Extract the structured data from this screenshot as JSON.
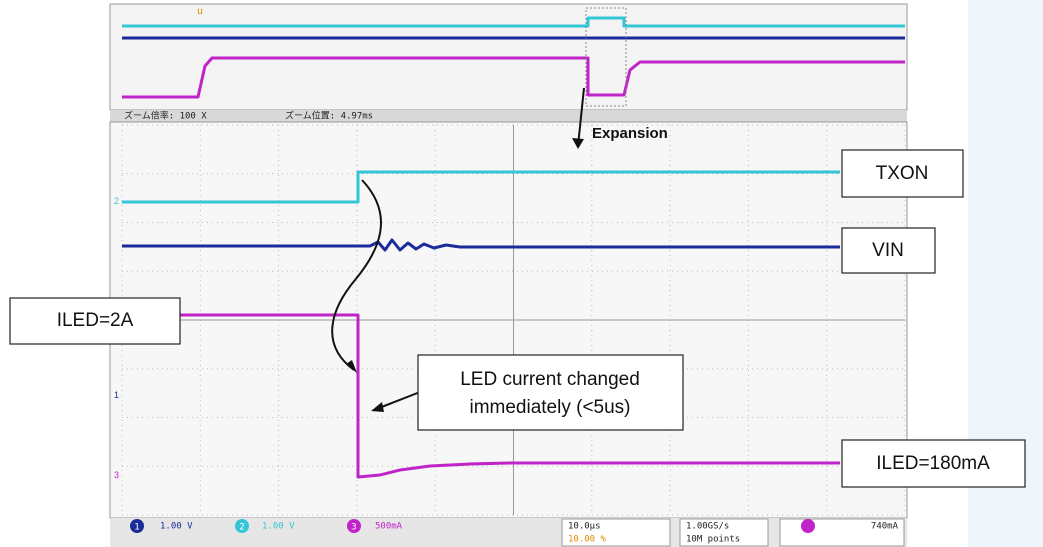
{
  "zoom_bar": {
    "factor": "ズーム倍率: 100 X",
    "position": "ズーム位置: 4.97ms"
  },
  "annotations": {
    "expansion": "Expansion",
    "txon": "TXON",
    "vin": "VIN",
    "iled_high": "ILED=2A",
    "led_current": [
      "LED current changed",
      "immediately (<5us)"
    ],
    "iled_low": "ILED=180mA"
  },
  "status_bar": {
    "channels": [
      "1",
      "2",
      "3"
    ],
    "ch1": "1.00 V",
    "ch2": "1.00 V",
    "ch3": "500mA",
    "timebase": "10.0µs",
    "trigger_pos": "10.00 %",
    "sample_rate": "1.00GS/s",
    "record_length": "10M points",
    "trigger_level": "740mA"
  }
}
